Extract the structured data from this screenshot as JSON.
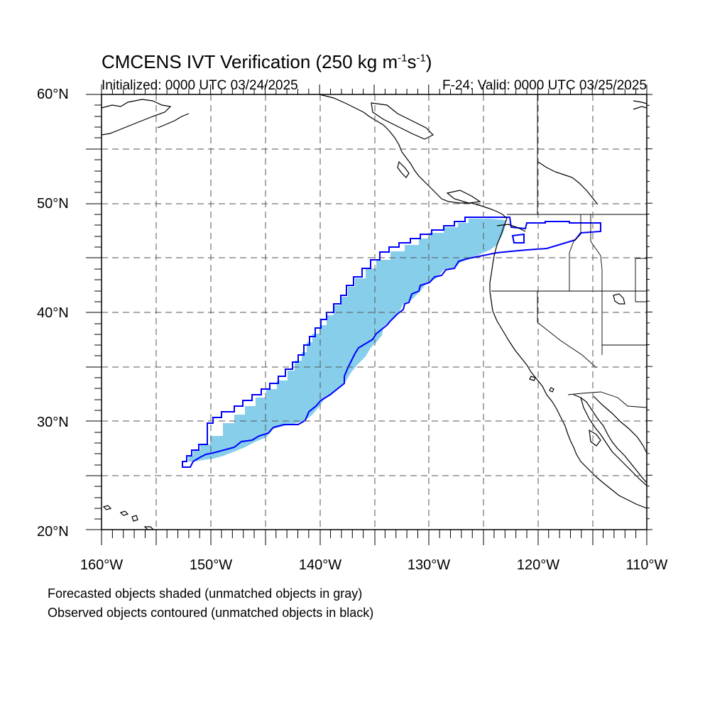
{
  "title": {
    "prefix": "CMCENS IVT Verification (250 kg m",
    "exp1": "-1",
    "mid": "s",
    "exp2": "-1",
    "suffix": ")"
  },
  "initialized": "Initialized: 0000 UTC 03/24/2025",
  "valid": "F-24: Valid: 0000 UTC 03/25/2025",
  "axes": {
    "lat_labels": [
      "60°N",
      "50°N",
      "40°N",
      "30°N",
      "20°N"
    ],
    "lon_labels": [
      "160°W",
      "150°W",
      "140°W",
      "130°W",
      "120°W",
      "110°W"
    ],
    "lon_range": [
      -160,
      -110
    ],
    "lat_range": [
      20,
      60
    ],
    "grid": "dashed every 5°"
  },
  "legend": {
    "forecast_note": "Forecasted objects shaded (unmatched objects in gray)",
    "observed_note": "Observed objects contoured (unmatched objects in black)"
  },
  "colors": {
    "forecast_fill": "#87ceeb",
    "observed_contour": "#0000ff",
    "coastline": "#000000",
    "grid": "#555555"
  }
}
